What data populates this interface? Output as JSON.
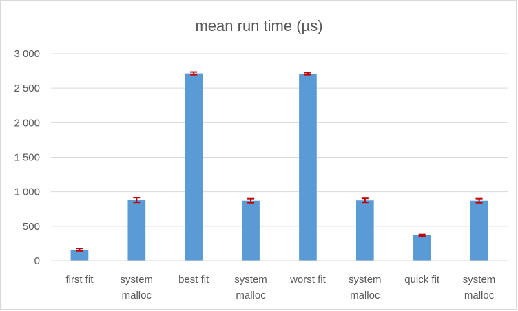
{
  "chart_data": {
    "type": "bar",
    "title": "mean run time (µs)",
    "xlabel": "",
    "ylabel": "",
    "categories": [
      [
        "first fit"
      ],
      [
        "system",
        "malloc"
      ],
      [
        "best fit"
      ],
      [
        "system",
        "malloc"
      ],
      [
        "worst fit"
      ],
      [
        "system",
        "malloc"
      ],
      [
        "quick fit"
      ],
      [
        "system",
        "malloc"
      ]
    ],
    "values": [
      160,
      880,
      2715,
      870,
      2710,
      875,
      370,
      870
    ],
    "error": [
      18,
      35,
      20,
      30,
      15,
      30,
      12,
      30
    ],
    "ylim": [
      0,
      3000
    ],
    "yticks": [
      0,
      500,
      1000,
      1500,
      2000,
      2500,
      3000
    ],
    "ytick_labels": [
      "0",
      "500",
      "1 000",
      "1 500",
      "2 000",
      "2 500",
      "3 000"
    ],
    "grid": true,
    "legend": "none",
    "colors": {
      "bar": "#5b9bd5",
      "error_bar": "#c00000",
      "grid": "#d9d9d9",
      "text": "#595959"
    }
  }
}
